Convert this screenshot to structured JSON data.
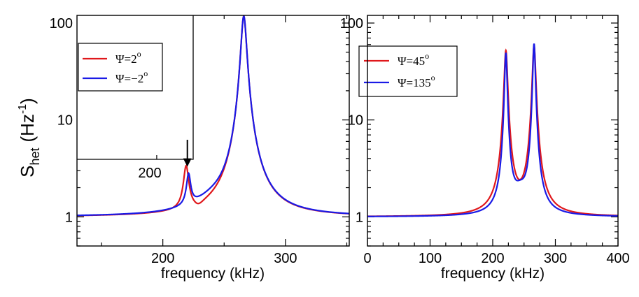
{
  "figure": {
    "ylabel_main": "S",
    "ylabel_sub": "het",
    "ylabel_unit_open": "(Hz",
    "ylabel_unit_exp": "-1",
    "ylabel_unit_close": ")"
  },
  "chart_data": [
    {
      "type": "line",
      "panel": "left",
      "xlabel": "frequency (kHz)",
      "ylabel": "S_het (Hz^-1)",
      "xscale": "linear",
      "yscale": "log",
      "xlim": [
        130,
        352
      ],
      "ylim": [
        0.5,
        120
      ],
      "xticks": [
        200,
        300
      ],
      "xtick_labels": [
        "200",
        "300"
      ],
      "yticks": [
        1,
        10,
        100
      ],
      "ytick_labels": [
        "1",
        "10",
        "100"
      ],
      "legend": {
        "position": "upper-left inset"
      },
      "series": [
        {
          "name": "Ψ=2°",
          "label_text": "Ψ=2",
          "label_sup": "o",
          "color": "#e0181c",
          "model": {
            "baseline": 1.0,
            "peaks": [
              {
                "f0": 219,
                "gamma": 2.2,
                "amp": 2.15
              },
              {
                "f0": 266,
                "gamma": 2.2,
                "amp": 117
              },
              {
                "f0": 229,
                "gamma": 5.0,
                "amp": -0.14
              }
            ]
          }
        },
        {
          "name": "Ψ=−2°",
          "label_text": "Ψ=−2",
          "label_sup": "o",
          "color": "#1a1ae6",
          "model": {
            "baseline": 1.0,
            "peaks": [
              {
                "f0": 221,
                "gamma": 1.8,
                "amp": 1.45
              },
              {
                "f0": 266,
                "gamma": 2.2,
                "amp": 117
              },
              {
                "f0": 240,
                "gamma": 16,
                "amp": 0.22
              }
            ]
          }
        }
      ],
      "inset": {
        "xlim": [
          130,
          232
        ],
        "ylim": [
          4,
          120
        ],
        "xtick_label": "200",
        "annotation": "arrow from inset to peak near 220 kHz",
        "arrow_target": {
          "x": 220,
          "y": 3.4
        }
      }
    },
    {
      "type": "line",
      "panel": "right",
      "xlabel": "frequency (kHz)",
      "ylabel": "",
      "xscale": "linear",
      "yscale": "log",
      "xlim": [
        0,
        400
      ],
      "ylim": [
        0.5,
        120
      ],
      "xticks": [
        0,
        100,
        200,
        300,
        400
      ],
      "xtick_labels": [
        "0",
        "100",
        "200",
        "300",
        "400"
      ],
      "yticks": [
        1,
        10,
        100
      ],
      "ytick_labels": [
        "1",
        "10",
        "100"
      ],
      "legend": {
        "position": "upper-left"
      },
      "series": [
        {
          "name": "Ψ=45°",
          "label_text": "Ψ=45",
          "label_sup": "o",
          "color": "#e0181c",
          "model": {
            "baseline": 1.0,
            "peaks": [
              {
                "f0": 221,
                "gamma": 2.6,
                "amp": 51
              },
              {
                "f0": 266,
                "gamma": 2.6,
                "amp": 57
              }
            ]
          }
        },
        {
          "name": "Ψ=135°",
          "label_text": "Ψ=135",
          "label_sup": "o",
          "color": "#1a1ae6",
          "model": {
            "baseline": 1.0,
            "peaks": [
              {
                "f0": 221,
                "gamma": 2.0,
                "amp": 48
              },
              {
                "f0": 266,
                "gamma": 2.0,
                "amp": 60
              },
              {
                "f0": 244,
                "gamma": 11,
                "amp": 0.55
              }
            ]
          }
        }
      ]
    }
  ]
}
